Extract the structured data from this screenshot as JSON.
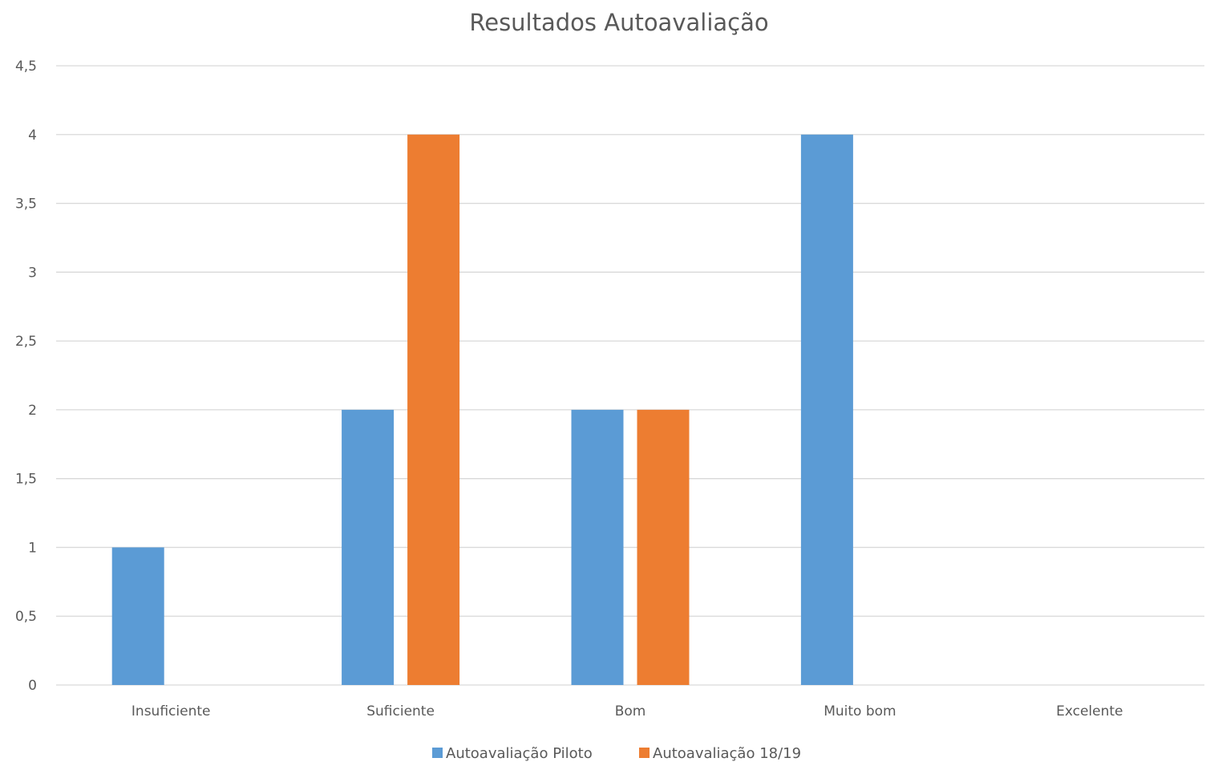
{
  "chart_data": {
    "type": "bar",
    "title": "Resultados Autoavaliação",
    "xlabel": "",
    "ylabel": "",
    "categories": [
      "Insuficiente",
      "Suficiente",
      "Bom",
      "Muito bom",
      "Excelente"
    ],
    "series": [
      {
        "name": "Autoavaliação Piloto",
        "color": "#5b9bd5",
        "values": [
          1,
          2,
          2,
          4,
          0
        ]
      },
      {
        "name": "Autoavaliação 18/19",
        "color": "#ed7d31",
        "values": [
          0,
          4,
          2,
          0,
          0
        ]
      }
    ],
    "ylim": [
      0,
      4.5
    ],
    "yticks": [
      "0",
      "0,5",
      "1",
      "1,5",
      "2",
      "2,5",
      "3",
      "3,5",
      "4",
      "4,5"
    ],
    "grid": true,
    "legend": "bottom"
  }
}
